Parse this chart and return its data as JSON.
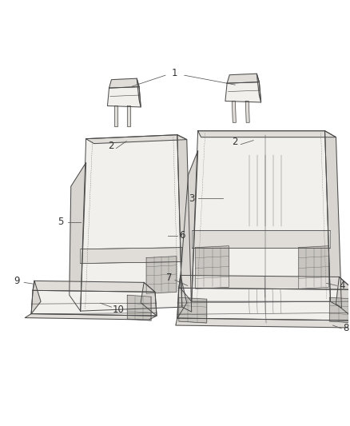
{
  "figure_width": 4.38,
  "figure_height": 5.33,
  "dpi": 100,
  "bg_color": "#ffffff",
  "line_color": "#4a4a4a",
  "fill_color": "#f2f0ed",
  "fill_dark": "#e0ddd9",
  "fill_side": "#d8d5d0",
  "mesh_color": "#c8c5c0",
  "label_color": "#333333",
  "label_fontsize": 8.5,
  "lw": 0.7
}
